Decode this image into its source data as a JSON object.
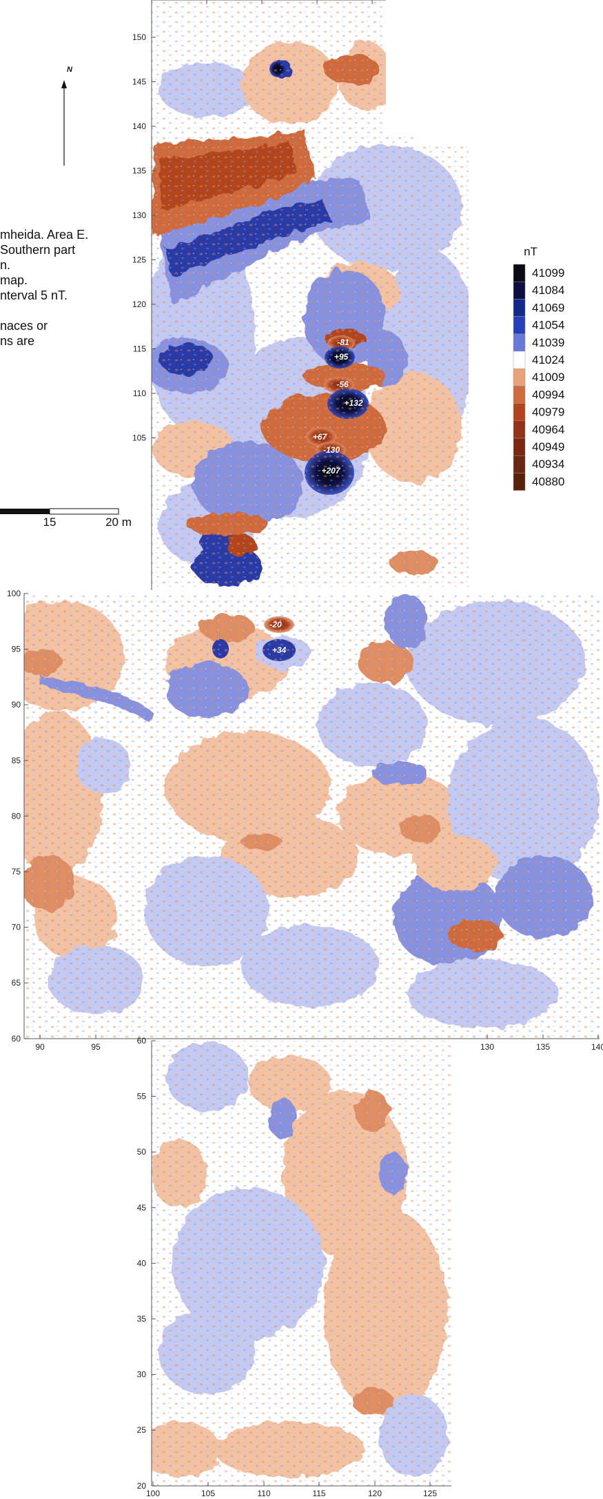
{
  "notes": [
    "mheida. Area  E.",
    "Southern part",
    "n.",
    "map.",
    "nterval 5 nT.",
    "",
    "naces or",
    "ns are"
  ],
  "north_label": "N",
  "scale_bar": {
    "labels": [
      "15",
      "20 m"
    ]
  },
  "legend": {
    "unit": "nT",
    "values": [
      "41099",
      "41084",
      "41069",
      "41054",
      "41039",
      "41024",
      "41009",
      "40994",
      "40979",
      "40964",
      "40949",
      "40934",
      "40880"
    ],
    "colors": [
      "#0a0a14",
      "#0d0f40",
      "#142a8a",
      "#2440b8",
      "#6a78d8",
      "#ffffff",
      "#e9a27a",
      "#cf6a3e",
      "#b2451f",
      "#93331a",
      "#7a2814",
      "#6a2610",
      "#5a2008"
    ]
  },
  "axes": {
    "top_y_ticks": [
      "150",
      "145",
      "140",
      "135",
      "130",
      "125",
      "120",
      "115",
      "110",
      "105"
    ],
    "middle_y_ticks": [
      "100",
      "95",
      "90",
      "85",
      "80",
      "75",
      "70",
      "65",
      "60"
    ],
    "middle_x_ticks": [
      "90",
      "95",
      "130",
      "135",
      "140"
    ],
    "bottom_y_ticks": [
      "60",
      "55",
      "50",
      "45",
      "40",
      "35",
      "30",
      "25",
      "20"
    ],
    "bottom_x_ticks": [
      "100",
      "105",
      "110",
      "115",
      "120",
      "125"
    ]
  },
  "anomaly_labels": [
    "-81",
    "+95",
    "-56",
    "+132",
    "+67",
    "-130",
    "+207",
    "-20",
    "+34"
  ],
  "palette": {
    "light_blue": "#c3c9f0",
    "mid_blue": "#8791dd",
    "dark_blue": "#2c3aa6",
    "light_orange": "#f3c2a2",
    "mid_orange": "#df8d62",
    "dark_red": "#b4461f"
  }
}
